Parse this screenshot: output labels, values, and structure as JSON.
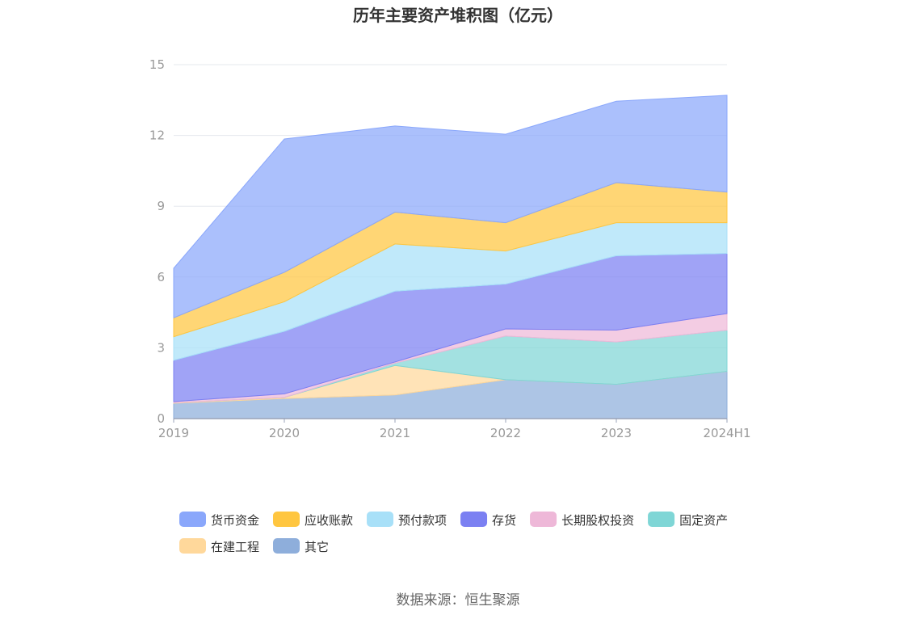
{
  "chart_data": {
    "type": "area",
    "stacked": true,
    "title": "历年主要资产堆积图（亿元）",
    "xlabel": "",
    "ylabel": "",
    "categories": [
      "2019",
      "2020",
      "2021",
      "2022",
      "2023",
      "2024H1"
    ],
    "y_ticks": [
      "0",
      "3",
      "6",
      "9",
      "12",
      "15"
    ],
    "ylim": [
      0,
      15
    ],
    "grid": true,
    "legend_position": "bottom",
    "series": [
      {
        "name": "其它",
        "color": "#8eaedb",
        "values": [
          0.65,
          0.85,
          1.0,
          1.65,
          1.45,
          2.0
        ]
      },
      {
        "name": "在建工程",
        "color": "#ffd89b",
        "values": [
          0.02,
          0.05,
          1.25,
          0.0,
          0.0,
          0.0
        ]
      },
      {
        "name": "固定资产",
        "color": "#7fd6d6",
        "values": [
          0.0,
          0.0,
          0.1,
          1.85,
          1.8,
          1.75
        ]
      },
      {
        "name": "长期股权投资",
        "color": "#eeb8d8",
        "values": [
          0.05,
          0.15,
          0.05,
          0.3,
          0.5,
          0.7
        ]
      },
      {
        "name": "存货",
        "color": "#7b80f2",
        "values": [
          1.75,
          2.65,
          3.0,
          1.9,
          3.15,
          2.55
        ]
      },
      {
        "name": "预付款项",
        "color": "#a8e0f8",
        "values": [
          1.0,
          1.25,
          2.0,
          1.4,
          1.4,
          1.3
        ]
      },
      {
        "name": "应收账款",
        "color": "#ffc640",
        "values": [
          0.8,
          1.25,
          1.35,
          1.2,
          1.7,
          1.3
        ]
      },
      {
        "name": "货币资金",
        "color": "#8aa7fb",
        "values": [
          2.1,
          5.65,
          3.65,
          3.75,
          3.45,
          4.1
        ]
      }
    ],
    "legend_order": [
      "货币资金",
      "应收账款",
      "预付款项",
      "存货",
      "长期股权投资",
      "固定资产",
      "在建工程",
      "其它"
    ]
  },
  "source": "数据来源：恒生聚源"
}
